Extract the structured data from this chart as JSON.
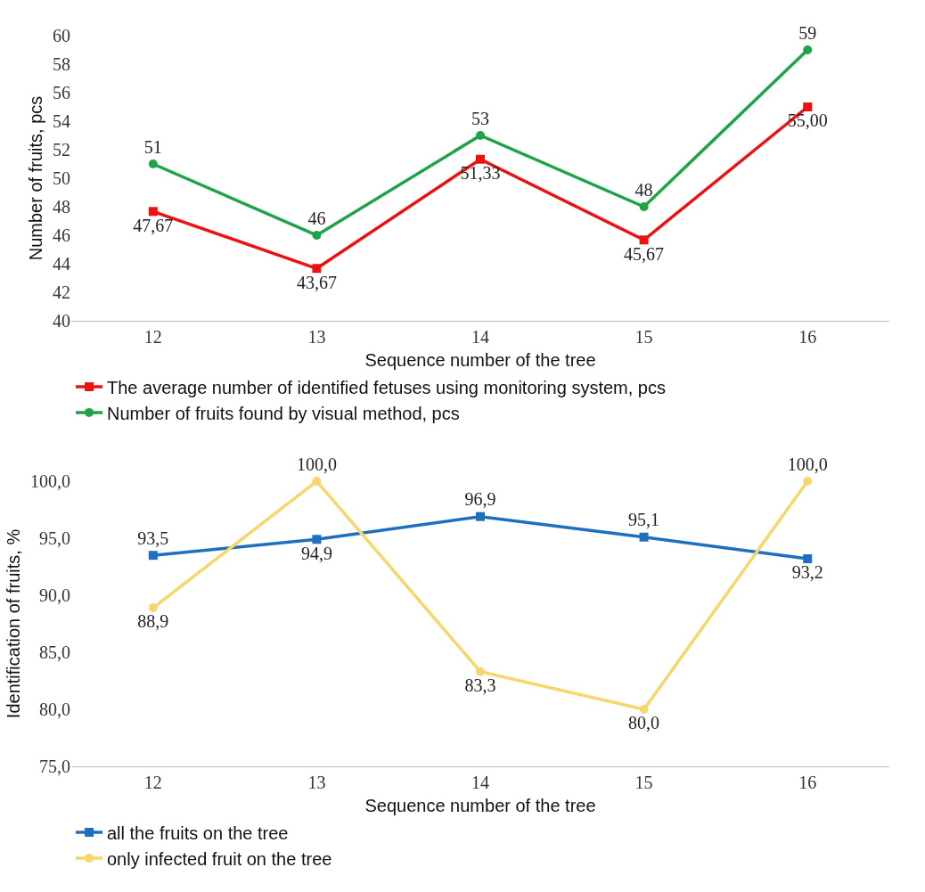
{
  "chart_data": [
    {
      "type": "line",
      "xlabel": "Sequence number of the tree",
      "ylabel": "Number of fruits, pcs",
      "categories": [
        "12",
        "13",
        "14",
        "15",
        "16"
      ],
      "ylim": [
        40,
        60
      ],
      "yticks": [
        40,
        42,
        44,
        46,
        48,
        50,
        52,
        54,
        56,
        58,
        60
      ],
      "grid": false,
      "legend": "bottom left",
      "series": [
        {
          "name": "The average number of identified fetuses using monitoring system, pcs",
          "color": "#ee1111",
          "marker": "square",
          "values": [
            47.67,
            43.67,
            51.33,
            45.67,
            55.0
          ],
          "value_labels": [
            "47,67",
            "43,67",
            "51,33",
            "45,67",
            "55,00"
          ]
        },
        {
          "name": "Number of fruits found by visual method, pcs",
          "color": "#1fa34a",
          "marker": "circle",
          "values": [
            51,
            46,
            53,
            48,
            59
          ],
          "value_labels": [
            "51",
            "46",
            "53",
            "48",
            "59"
          ]
        }
      ]
    },
    {
      "type": "line",
      "xlabel": "Sequence number of the tree",
      "ylabel": "Identification of fruits, %",
      "categories": [
        "12",
        "13",
        "14",
        "15",
        "16"
      ],
      "ylim": [
        75,
        100
      ],
      "yticks": [
        {
          "value": 75,
          "label": "75,0"
        },
        {
          "value": 80,
          "label": "80,0"
        },
        {
          "value": 85,
          "label": "85,0"
        },
        {
          "value": 90,
          "label": "90,0"
        },
        {
          "value": 95,
          "label": "95,0"
        },
        {
          "value": 100,
          "label": "100,0"
        }
      ],
      "grid": false,
      "legend": "bottom left",
      "series": [
        {
          "name": "all the fruits on the tree",
          "color": "#1f6fbf",
          "marker": "square",
          "values": [
            93.5,
            94.9,
            96.9,
            95.1,
            93.2
          ],
          "value_labels": [
            "93,5",
            "94,9",
            "96,9",
            "95,1",
            "93,2"
          ]
        },
        {
          "name": "only infected fruit on the tree",
          "color": "#f5d76e",
          "marker": "circle",
          "values": [
            88.9,
            100.0,
            83.3,
            80.0,
            100.0
          ],
          "value_labels": [
            "88,9",
            "100,0",
            "83,3",
            "80,0",
            "100,0"
          ]
        }
      ]
    }
  ]
}
